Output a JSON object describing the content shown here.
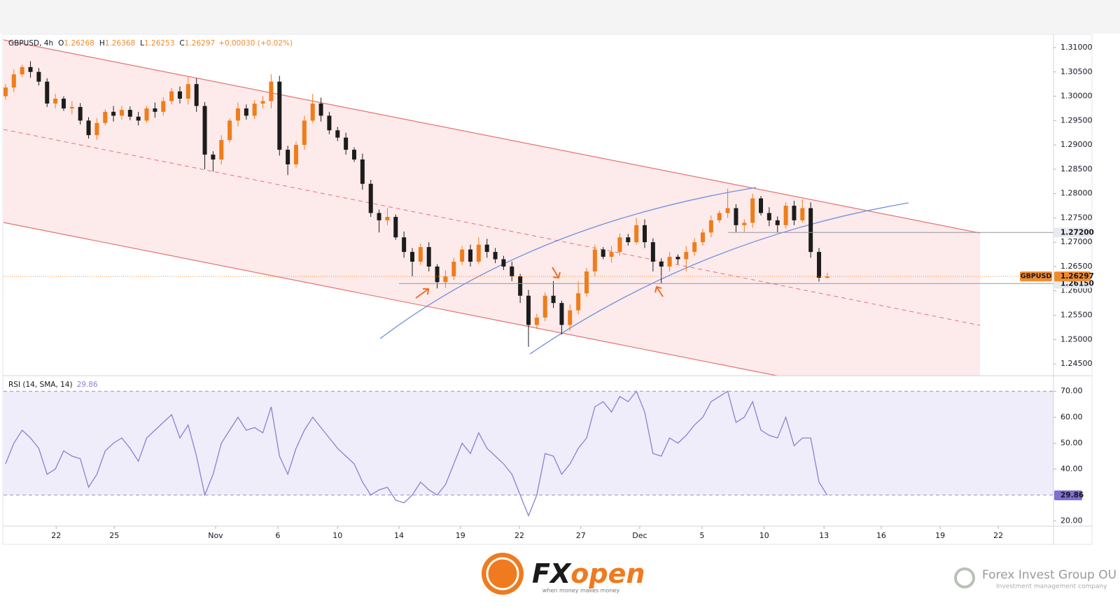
{
  "chart_data": [
    {
      "type": "candlestick",
      "legend_title": "GBPUSD, 4h",
      "legend_keys": [
        "O",
        "H",
        "L",
        "C"
      ],
      "change": "+0.00030 (+0.02%)",
      "badge": "GBPUSD",
      "colors": {
        "up": "#ef7d1a",
        "down": "#1c1c1c",
        "last": "#f08c2e",
        "line": "#9598a1"
      },
      "x": [
        0,
        1,
        2,
        3,
        4,
        5,
        6,
        7,
        8,
        9,
        10,
        11,
        12,
        13,
        14,
        15,
        16,
        17,
        18,
        19,
        20,
        21,
        22,
        23,
        24,
        25,
        26,
        27,
        28,
        29,
        30,
        31,
        32,
        33,
        34,
        35,
        36,
        37,
        38,
        39,
        40,
        41,
        42,
        43,
        44,
        45,
        46,
        47,
        48,
        49,
        50,
        51,
        52,
        53,
        54,
        55,
        56,
        57,
        58,
        59,
        60,
        61,
        62,
        63,
        64,
        65,
        66,
        67,
        68,
        69,
        70,
        71,
        72,
        73,
        74,
        75,
        76,
        77,
        78,
        79,
        80,
        81,
        82,
        83,
        84,
        85,
        86,
        87,
        88,
        89,
        90,
        91,
        92,
        93,
        94,
        95,
        96,
        97,
        98,
        99
      ],
      "open": [
        1.3,
        1.3018,
        1.3045,
        1.306,
        1.305,
        1.303,
        1.2985,
        1.2995,
        1.2975,
        1.2978,
        1.295,
        1.292,
        1.2945,
        1.2968,
        1.296,
        1.2972,
        1.2958,
        1.295,
        1.2975,
        1.2968,
        1.299,
        1.301,
        1.2995,
        1.3025,
        1.298,
        1.288,
        1.287,
        1.291,
        1.295,
        1.2975,
        1.296,
        1.2985,
        1.299,
        1.303,
        1.289,
        1.286,
        1.29,
        1.295,
        1.2985,
        1.296,
        1.293,
        1.2915,
        1.289,
        1.287,
        1.282,
        1.276,
        1.2745,
        1.2752,
        1.271,
        1.268,
        1.266,
        1.269,
        1.265,
        1.2618,
        1.263,
        1.266,
        1.2685,
        1.266,
        1.2695,
        1.268,
        1.2665,
        1.265,
        1.263,
        1.259,
        1.253,
        1.2545,
        1.259,
        1.2575,
        1.253,
        1.256,
        1.2595,
        1.264,
        1.2685,
        1.267,
        1.268,
        1.271,
        1.27,
        1.2735,
        1.27,
        1.266,
        1.265,
        1.267,
        1.2665,
        1.268,
        1.27,
        1.272,
        1.2745,
        1.276,
        1.277,
        1.2735,
        1.274,
        1.279,
        1.276,
        1.2745,
        1.2735,
        1.2775,
        1.2745,
        1.277,
        1.268,
        1.26268
      ],
      "high": [
        1.3025,
        1.3055,
        1.3065,
        1.3072,
        1.3058,
        1.3037,
        1.3005,
        1.3,
        1.299,
        1.2986,
        1.2957,
        1.2955,
        1.2973,
        1.298,
        1.298,
        1.2979,
        1.2968,
        1.298,
        1.2987,
        1.2998,
        1.3017,
        1.302,
        1.304,
        1.3037,
        1.2988,
        1.2887,
        1.292,
        1.2955,
        1.2987,
        1.2983,
        1.2992,
        1.3,
        1.3045,
        1.3042,
        1.2898,
        1.2907,
        1.296,
        1.3005,
        1.2997,
        1.2968,
        1.2937,
        1.2925,
        1.2895,
        1.2882,
        1.2828,
        1.2767,
        1.277,
        1.2757,
        1.2722,
        1.2688,
        1.2697,
        1.27,
        1.2655,
        1.2642,
        1.2668,
        1.2692,
        1.2695,
        1.271,
        1.2707,
        1.2688,
        1.2672,
        1.266,
        1.2635,
        1.2602,
        1.2553,
        1.2597,
        1.262,
        1.258,
        1.2572,
        1.262,
        1.2647,
        1.2695,
        1.269,
        1.2692,
        1.2718,
        1.2717,
        1.275,
        1.2747,
        1.2708,
        1.2667,
        1.268,
        1.2675,
        1.2692,
        1.2708,
        1.2727,
        1.2755,
        1.2765,
        1.281,
        1.2778,
        1.2747,
        1.28,
        1.2795,
        1.2772,
        1.2753,
        1.2782,
        1.2785,
        1.2788,
        1.2782,
        1.2688,
        1.26368
      ],
      "low": [
        1.2993,
        1.3008,
        1.304,
        1.3038,
        1.3022,
        1.2978,
        1.2975,
        1.297,
        1.2963,
        1.2942,
        1.2913,
        1.291,
        1.294,
        1.2948,
        1.2952,
        1.2951,
        1.294,
        1.2945,
        1.2956,
        1.296,
        1.2983,
        1.2985,
        1.2983,
        1.2968,
        1.285,
        1.2845,
        1.286,
        1.2905,
        1.2938,
        1.2952,
        1.2953,
        1.2975,
        1.2975,
        1.2878,
        1.2838,
        1.2853,
        1.289,
        1.2945,
        1.2948,
        1.2922,
        1.2908,
        1.288,
        1.2865,
        1.2808,
        1.2752,
        1.272,
        1.2735,
        1.2705,
        1.2668,
        1.263,
        1.2653,
        1.264,
        1.2605,
        1.2606,
        1.2622,
        1.2653,
        1.265,
        1.2655,
        1.2668,
        1.2657,
        1.2643,
        1.262,
        1.2575,
        1.2485,
        1.2522,
        1.2538,
        1.2565,
        1.251,
        1.2518,
        1.2552,
        1.2588,
        1.263,
        1.2665,
        1.2658,
        1.2672,
        1.2693,
        1.2695,
        1.2688,
        1.264,
        1.2615,
        1.264,
        1.2655,
        1.264,
        1.2672,
        1.2693,
        1.271,
        1.274,
        1.275,
        1.272,
        1.272,
        1.273,
        1.2755,
        1.2733,
        1.272,
        1.2728,
        1.2735,
        1.274,
        1.2668,
        1.2619,
        1.26253
      ],
      "close": [
        1.3018,
        1.3045,
        1.306,
        1.305,
        1.303,
        1.2985,
        1.2995,
        1.2975,
        1.2978,
        1.295,
        1.292,
        1.2945,
        1.2968,
        1.296,
        1.2972,
        1.2958,
        1.295,
        1.2975,
        1.2968,
        1.299,
        1.301,
        1.2995,
        1.3025,
        1.298,
        1.288,
        1.287,
        1.291,
        1.295,
        1.2975,
        1.296,
        1.2985,
        1.299,
        1.303,
        1.289,
        1.286,
        1.29,
        1.295,
        1.2985,
        1.296,
        1.293,
        1.2915,
        1.289,
        1.287,
        1.282,
        1.276,
        1.2745,
        1.2752,
        1.271,
        1.268,
        1.266,
        1.269,
        1.265,
        1.2618,
        1.263,
        1.266,
        1.2685,
        1.266,
        1.2695,
        1.268,
        1.2665,
        1.265,
        1.263,
        1.259,
        1.253,
        1.2545,
        1.259,
        1.2575,
        1.253,
        1.256,
        1.2595,
        1.264,
        1.2685,
        1.267,
        1.268,
        1.271,
        1.27,
        1.2735,
        1.27,
        1.266,
        1.265,
        1.267,
        1.2665,
        1.268,
        1.27,
        1.272,
        1.2745,
        1.276,
        1.277,
        1.2735,
        1.274,
        1.279,
        1.276,
        1.2745,
        1.2735,
        1.2775,
        1.2745,
        1.277,
        1.268,
        1.2627,
        1.26297
      ],
      "xlim": [
        -0.25,
        126.25
      ],
      "xticks": [
        {
          "value": 6.1,
          "label": "22"
        },
        {
          "value": 13.1,
          "label": "25"
        },
        {
          "value": 25.3,
          "label": "Nov"
        },
        {
          "value": 32.8,
          "label": "6"
        },
        {
          "value": 40.0,
          "label": "10"
        },
        {
          "value": 47.4,
          "label": "14"
        },
        {
          "value": 54.8,
          "label": "19"
        },
        {
          "value": 61.9,
          "label": "22"
        },
        {
          "value": 69.3,
          "label": "27"
        },
        {
          "value": 76.4,
          "label": "Dec"
        },
        {
          "value": 83.9,
          "label": "5"
        },
        {
          "value": 91.4,
          "label": "10"
        },
        {
          "value": 98.6,
          "label": "13"
        },
        {
          "value": 105.5,
          "label": "16"
        },
        {
          "value": 112.6,
          "label": "19"
        },
        {
          "value": 119.6,
          "label": "22"
        }
      ],
      "ylim": [
        1.24256,
        1.31259
      ],
      "yticks": [
        {
          "value": 1.245,
          "label": "1.24500"
        },
        {
          "value": 1.25,
          "label": "1.25000"
        },
        {
          "value": 1.255,
          "label": "1.25500"
        },
        {
          "value": 1.26,
          "label": "1.26000"
        },
        {
          "value": 1.265,
          "label": "1.26500"
        },
        {
          "value": 1.27,
          "label": "1.27000"
        },
        {
          "value": 1.275,
          "label": "1.27500"
        },
        {
          "value": 1.28,
          "label": "1.28000"
        },
        {
          "value": 1.285,
          "label": "1.28500"
        },
        {
          "value": 1.29,
          "label": "1.29000"
        },
        {
          "value": 1.295,
          "label": "1.29500"
        },
        {
          "value": 1.3,
          "label": "1.30000"
        },
        {
          "value": 1.305,
          "label": "1.30500"
        },
        {
          "value": 1.31,
          "label": "1.31000"
        }
      ],
      "price_lines": [
        {
          "value": 1.272,
          "label": "1.27200"
        },
        {
          "value": 1.2615,
          "label": "1.26150"
        }
      ],
      "grid": false
    },
    {
      "type": "line",
      "title": "RSI (14, SMA, 14)",
      "color": "#8c7fd6",
      "band": [
        30,
        70
      ],
      "values": [
        42,
        50,
        55,
        52,
        48,
        38,
        40,
        47,
        45,
        44,
        33,
        38,
        47,
        50,
        52,
        48,
        43,
        52,
        55,
        58,
        61,
        52,
        57,
        45,
        30,
        38,
        50,
        55,
        60,
        55,
        56,
        54,
        64,
        45,
        38,
        48,
        55,
        60,
        56,
        52,
        48,
        45,
        42,
        35,
        30,
        32,
        33,
        28,
        27,
        30,
        35,
        32,
        30,
        34,
        42,
        50,
        46,
        54,
        48,
        45,
        42,
        38,
        30,
        22,
        30,
        46,
        45,
        38,
        42,
        48,
        52,
        64,
        66,
        62,
        68,
        66,
        70,
        62,
        46,
        45,
        52,
        50,
        53,
        57,
        60,
        66,
        68,
        70,
        58,
        60,
        66,
        55,
        53,
        52,
        60,
        49,
        52,
        52,
        35,
        29.86
      ],
      "ylim": [
        18,
        76
      ],
      "yticks": [
        {
          "value": 70,
          "label": "70.00"
        },
        {
          "value": 60,
          "label": "60.00"
        },
        {
          "value": 50,
          "label": "50.00"
        },
        {
          "value": 40,
          "label": "40.00"
        },
        {
          "value": 20,
          "label": "20.00"
        }
      ],
      "grid": false
    }
  ],
  "footer": {
    "brand": [
      "FX",
      "open"
    ],
    "tagline": "when money makes money",
    "company": "Forex Invest Group OU",
    "company_sub": "Investment management company"
  }
}
